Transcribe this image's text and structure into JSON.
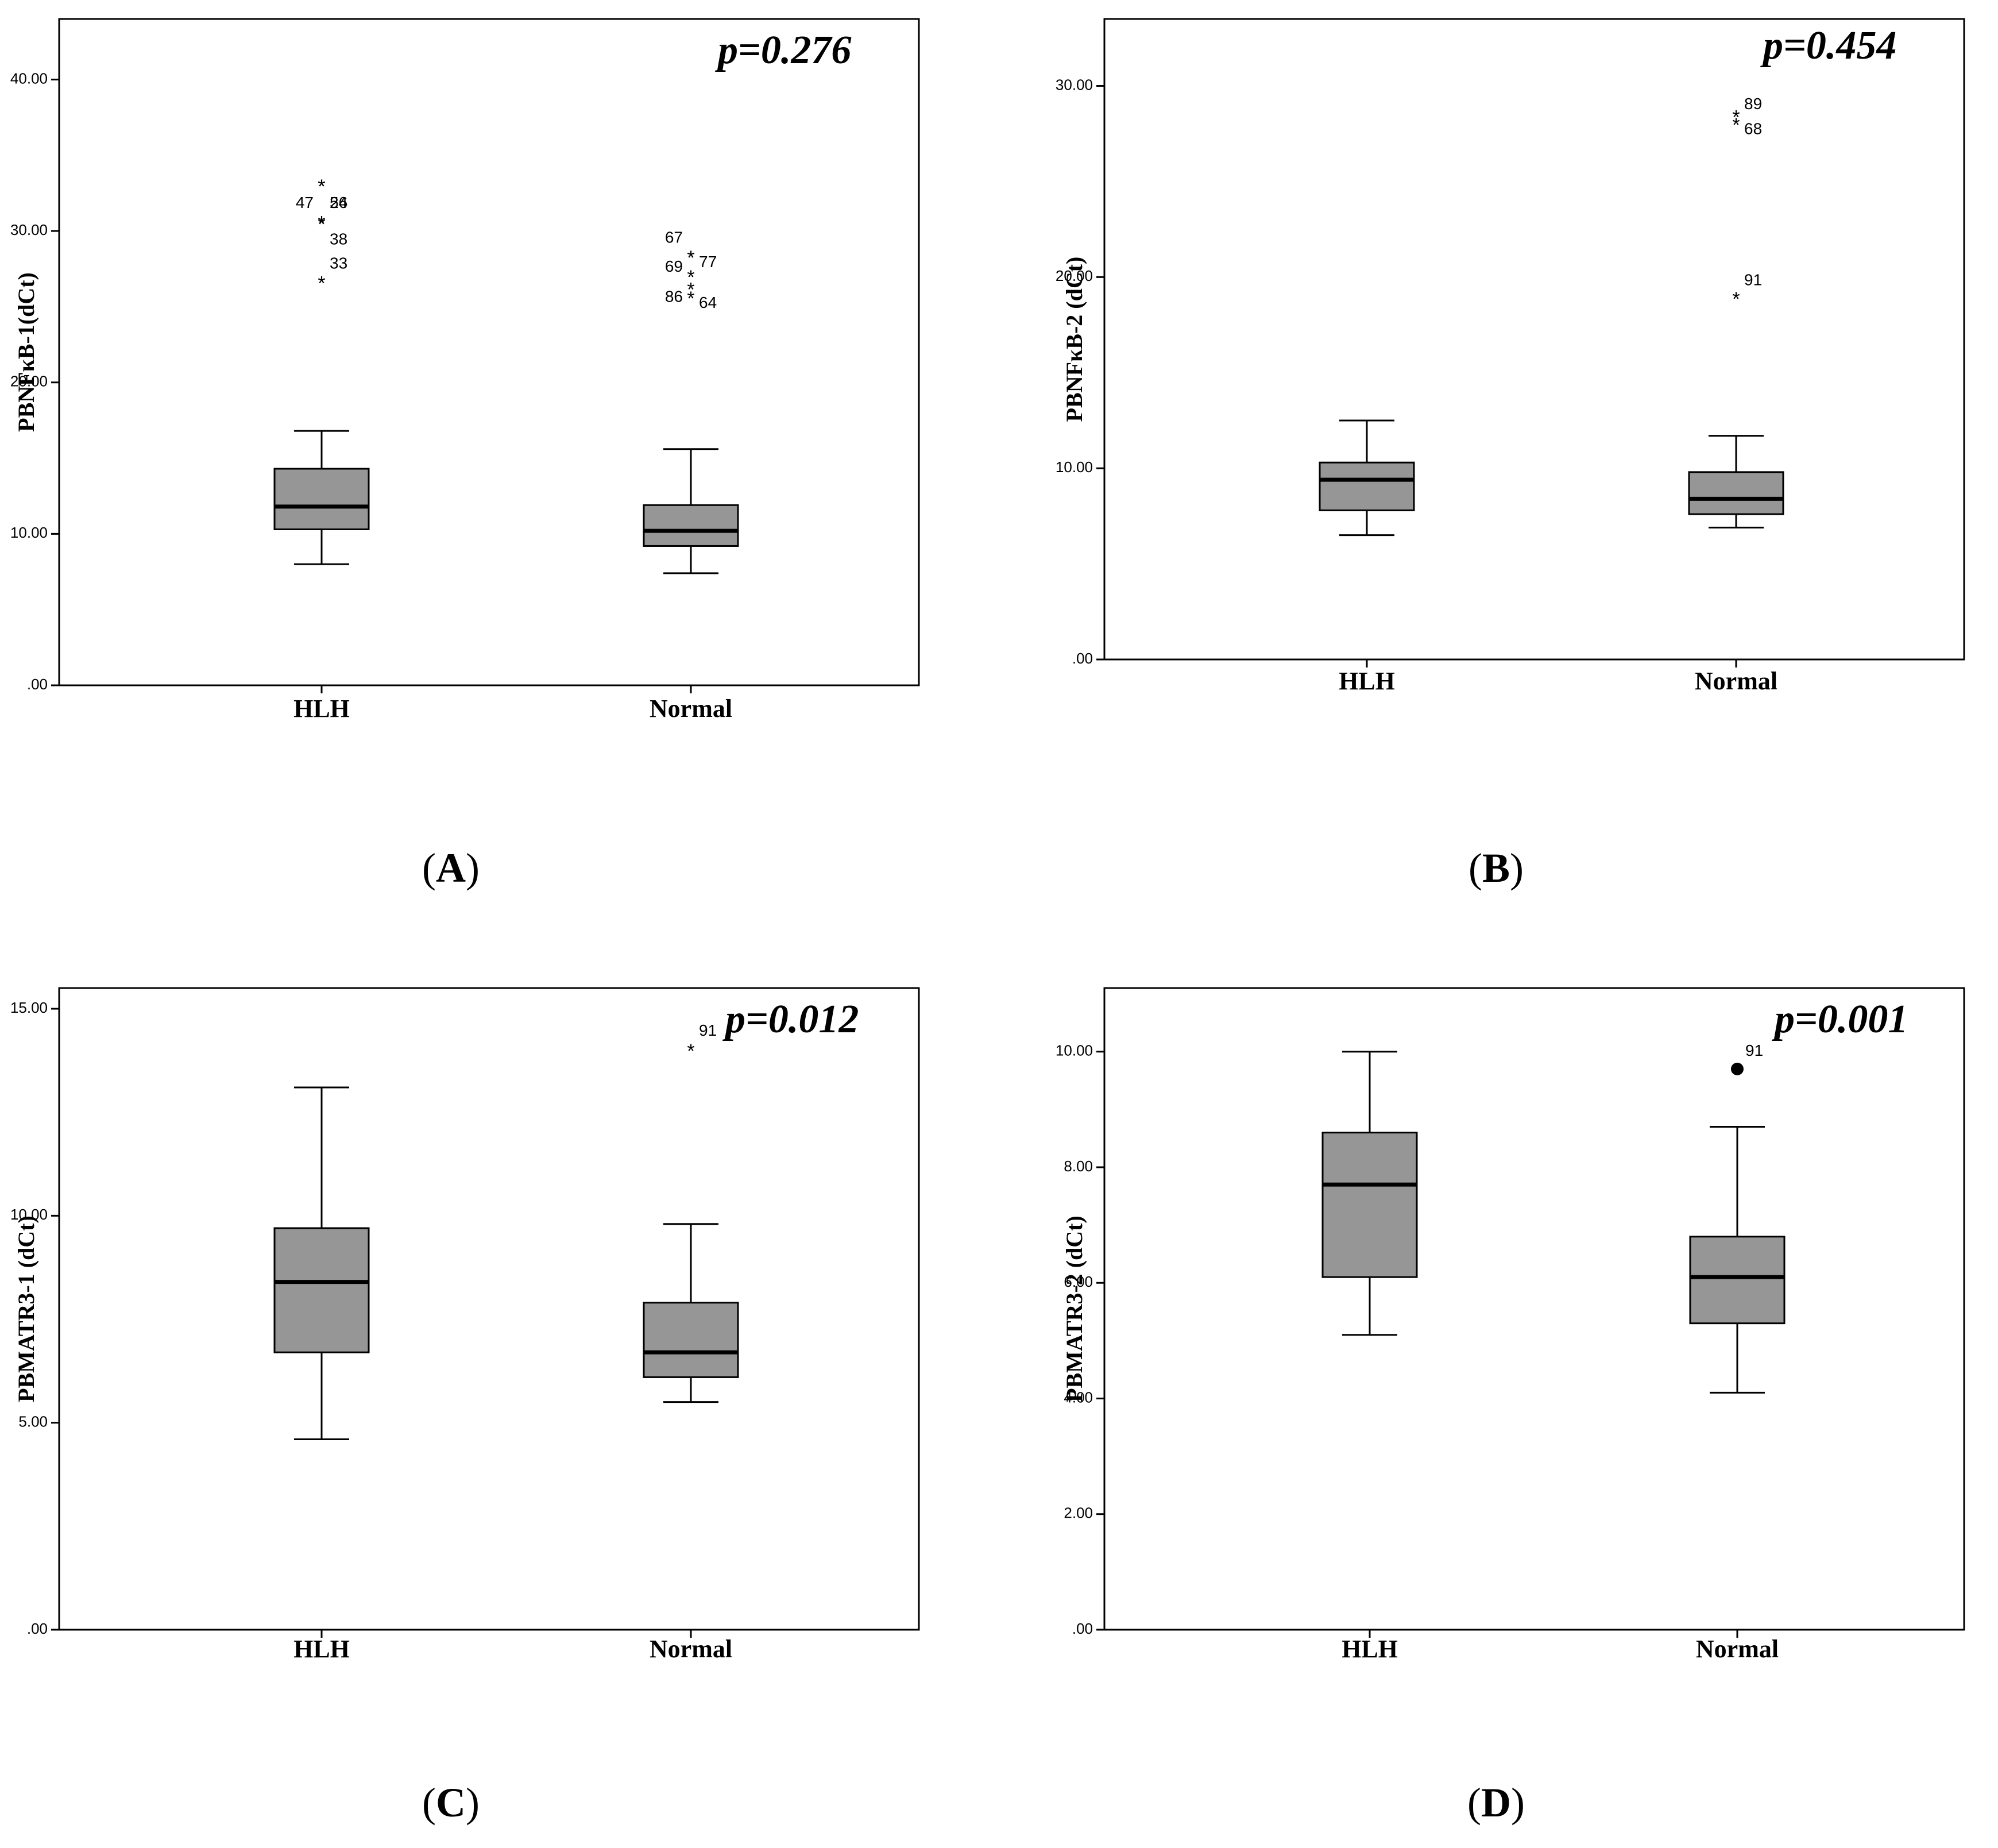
{
  "chart_data": [
    {
      "type": "box",
      "panel_label": "A",
      "ylabel": "PBNFκB-1(dCt)",
      "ylim": [
        0,
        44
      ],
      "yticks": [
        0,
        10,
        20,
        30,
        40
      ],
      "ytick_labels": [
        ".00",
        "10.00",
        "20.00",
        "30.00",
        "40.00"
      ],
      "p_value": "p=0.276",
      "categories": [
        "HLH",
        "Normal"
      ],
      "boxes": [
        {
          "category": "HLH",
          "min": 8.0,
          "q1": 10.3,
          "median": 11.8,
          "q3": 14.3,
          "max": 16.8,
          "outliers": [
            {
              "id": "47",
              "value": 33.0,
              "label_side": "left",
              "label_dy": -1.2
            },
            {
              "id": "26",
              "value": 33.0,
              "label_side": "right",
              "label_dy": -1.2
            },
            {
              "id": "54",
              "value": 30.6,
              "label_side": "right",
              "label_dy": 1.2
            },
            {
              "id": "38",
              "value": 30.5,
              "label_side": "right",
              "label_dy": -1.1
            },
            {
              "id": "33",
              "value": 26.6,
              "label_side": "right",
              "label_dy": 1.2
            }
          ]
        },
        {
          "category": "Normal",
          "min": 7.4,
          "q1": 9.2,
          "median": 10.2,
          "q3": 11.9,
          "max": 15.6,
          "outliers": [
            {
              "id": "67",
              "value": 28.3,
              "label_side": "left",
              "label_dy": 1.2
            },
            {
              "id": "77",
              "value": 28.3,
              "label_side": "right",
              "label_dy": -0.4
            },
            {
              "id": "69",
              "value": 27.0,
              "label_side": "left",
              "label_dy": 0.6
            },
            {
              "id": "86",
              "value": 26.2,
              "label_side": "left",
              "label_dy": -0.6
            },
            {
              "id": "64",
              "value": 25.6,
              "label_side": "right",
              "label_dy": -0.4
            }
          ]
        }
      ]
    },
    {
      "type": "box",
      "panel_label": "B",
      "ylabel": "PBNFκB-2 (dCt)",
      "ylim": [
        0,
        33.5
      ],
      "yticks": [
        0,
        10,
        20,
        30
      ],
      "ytick_labels": [
        ".00",
        "10.00",
        "20.00",
        "30.00"
      ],
      "p_value": "p=0.454",
      "categories": [
        "HLH",
        "Normal"
      ],
      "boxes": [
        {
          "category": "HLH",
          "min": 6.5,
          "q1": 7.8,
          "median": 9.4,
          "q3": 10.3,
          "max": 12.5,
          "outliers": []
        },
        {
          "category": "Normal",
          "min": 6.9,
          "q1": 7.6,
          "median": 8.4,
          "q3": 9.8,
          "max": 11.7,
          "outliers": [
            {
              "id": "89",
              "value": 28.4,
              "label_side": "right",
              "label_dy": 0.6
            },
            {
              "id": "68",
              "value": 28.0,
              "label_side": "right",
              "label_dy": -0.3
            },
            {
              "id": "91",
              "value": 18.9,
              "label_side": "right",
              "label_dy": 0.9
            }
          ]
        }
      ]
    },
    {
      "type": "box",
      "panel_label": "C",
      "ylabel": "PBMATR3-1 (dCt)",
      "ylim": [
        0,
        15.5
      ],
      "yticks": [
        0,
        5,
        10,
        15
      ],
      "ytick_labels": [
        ".00",
        "5.00",
        "10.00",
        "15.00"
      ],
      "p_value": "p=0.012",
      "categories": [
        "HLH",
        "Normal"
      ],
      "boxes": [
        {
          "category": "HLH",
          "min": 4.6,
          "q1": 6.7,
          "median": 8.4,
          "q3": 9.7,
          "max": 13.1,
          "outliers": []
        },
        {
          "category": "Normal",
          "min": 5.5,
          "q1": 6.1,
          "median": 6.7,
          "q3": 7.9,
          "max": 9.8,
          "outliers": [
            {
              "id": "91",
              "value": 14.0,
              "label_side": "right",
              "label_dy": 0.45
            }
          ]
        }
      ]
    },
    {
      "type": "box",
      "panel_label": "D",
      "ylabel": "PBMATR3-2 (dCt)",
      "ylim": [
        0,
        11.1
      ],
      "yticks": [
        0,
        2,
        4,
        6,
        8,
        10
      ],
      "ytick_labels": [
        ".00",
        "2.00",
        "4.00",
        "6.00",
        "8.00",
        "10.00"
      ],
      "p_value": "p=0.001",
      "categories": [
        "HLH",
        "Normal"
      ],
      "boxes": [
        {
          "category": "HLH",
          "min": 5.1,
          "q1": 6.1,
          "median": 7.7,
          "q3": 8.6,
          "max": 10.0,
          "outliers": []
        },
        {
          "category": "Normal",
          "min": 4.1,
          "q1": 5.3,
          "median": 6.1,
          "q3": 6.8,
          "max": 8.7,
          "outliers": [
            {
              "id": "91",
              "value": 9.7,
              "label_side": "right",
              "label_dy": 0.3,
              "marker": "dot"
            }
          ]
        }
      ]
    }
  ]
}
